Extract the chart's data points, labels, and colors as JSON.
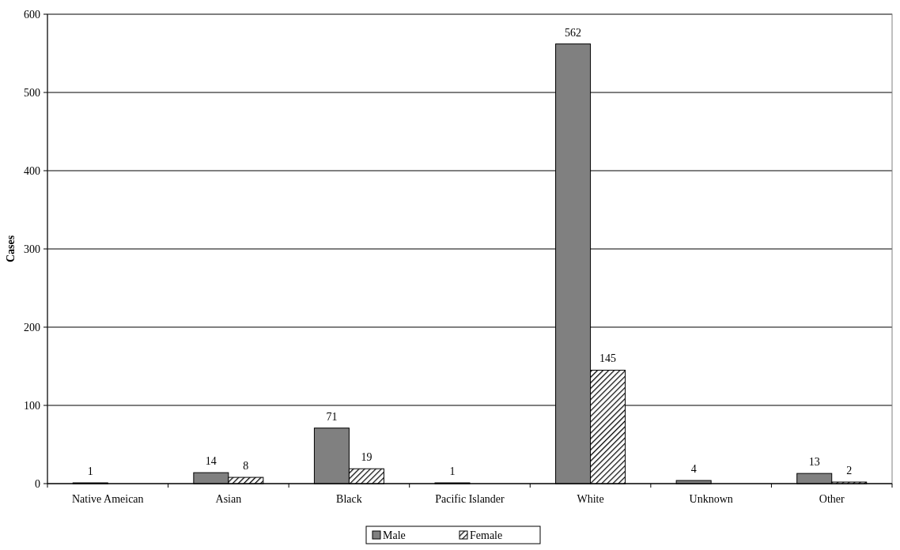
{
  "chart_data": {
    "type": "bar",
    "ylabel": "Cases",
    "categories": [
      "Native Ameican",
      "Asian",
      "Black",
      "Pacific Islander",
      "White",
      "Unknown",
      "Other"
    ],
    "series": [
      {
        "name": "Male",
        "color": "#808080",
        "values": [
          1,
          14,
          71,
          1,
          562,
          4,
          13
        ]
      },
      {
        "name": "Female",
        "color": "#000000",
        "values": [
          null,
          8,
          19,
          null,
          145,
          null,
          2
        ]
      }
    ],
    "ylim": [
      0,
      600
    ],
    "yticks": [
      0,
      100,
      200,
      300,
      400,
      500,
      600
    ],
    "grid": "y",
    "legend": "bottom",
    "data_labels": true
  }
}
